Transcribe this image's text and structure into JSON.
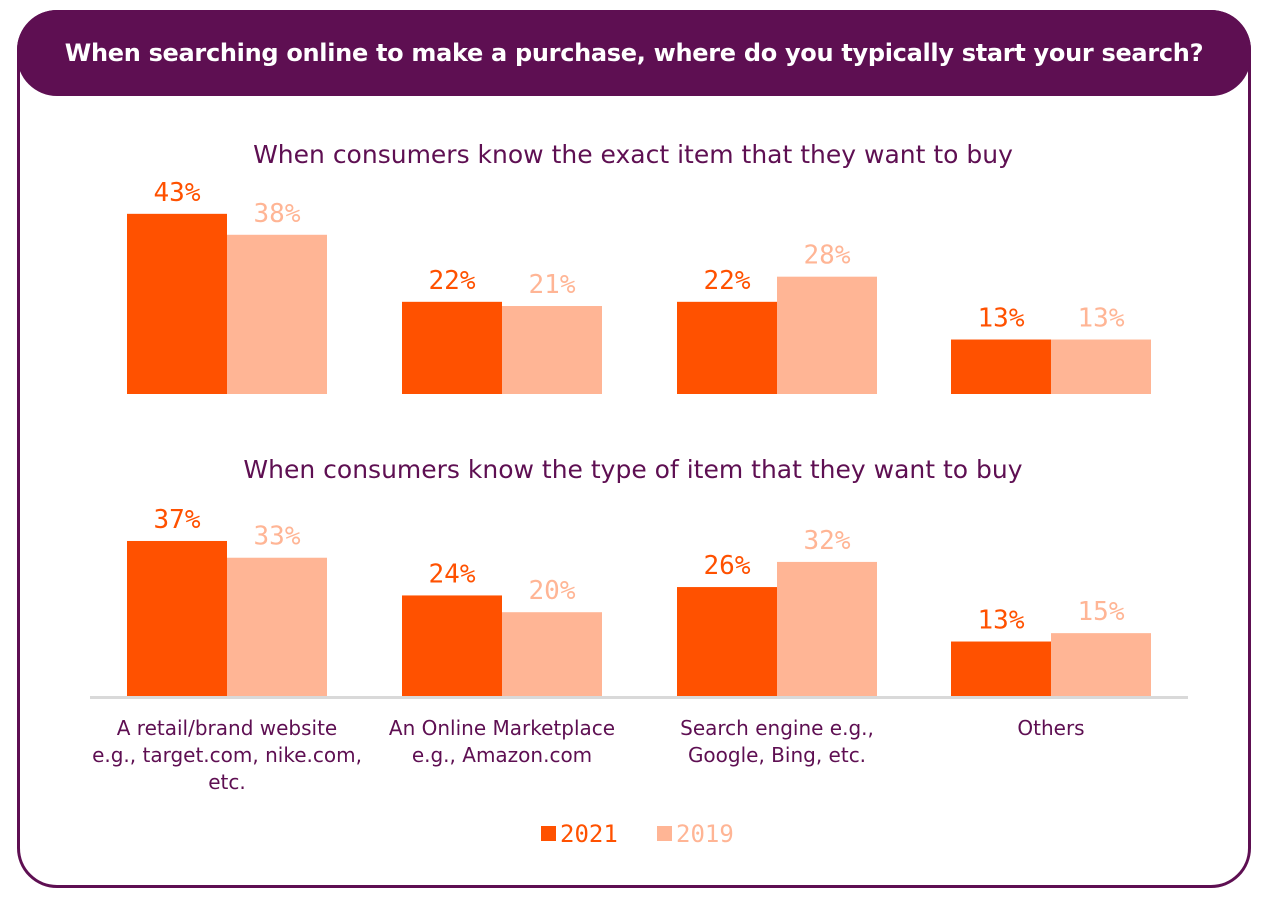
{
  "header": {
    "title": "When searching online to make a purchase, where do you typically start your search?"
  },
  "colors": {
    "brand": "#5e0f52",
    "series_2021": "#ff5100",
    "series_2019": "#ffb595",
    "axis": "#d9d9d9"
  },
  "chart_data": [
    {
      "type": "bar",
      "title": "When consumers know the exact item that they want to buy",
      "categories": [
        "A retail/brand website e.g., target.com, nike.com, etc.",
        "An Online Marketplace e.g., Amazon.com",
        "Search engine e.g., Google, Bing, etc.",
        "Others"
      ],
      "series": [
        {
          "name": "2021",
          "values": [
            43,
            22,
            22,
            13
          ],
          "labels": [
            "43%",
            "22%",
            "22%",
            "13%"
          ]
        },
        {
          "name": "2019",
          "values": [
            38,
            21,
            28,
            13
          ],
          "labels": [
            "38%",
            "21%",
            "28%",
            "13%"
          ]
        }
      ],
      "ylim": [
        0,
        45
      ]
    },
    {
      "type": "bar",
      "title": "When consumers know the type of item that they want to buy",
      "categories": [
        "A retail/brand website e.g., target.com, nike.com, etc.",
        "An Online Marketplace e.g., Amazon.com",
        "Search engine e.g., Google, Bing, etc.",
        "Others"
      ],
      "series": [
        {
          "name": "2021",
          "values": [
            37,
            24,
            26,
            13
          ],
          "labels": [
            "37%",
            "24%",
            "26%",
            "13%"
          ]
        },
        {
          "name": "2019",
          "values": [
            33,
            20,
            32,
            15
          ],
          "labels": [
            "33%",
            "20%",
            "32%",
            "15%"
          ]
        }
      ],
      "ylim": [
        0,
        45
      ]
    }
  ],
  "category_labels": [
    [
      "A retail/brand website",
      "e.g., target.com, nike.com,",
      "etc."
    ],
    [
      "An Online Marketplace",
      "e.g., Amazon.com"
    ],
    [
      "Search engine e.g.,",
      "Google, Bing, etc."
    ],
    [
      "Others"
    ]
  ],
  "legend": [
    {
      "label": "2021"
    },
    {
      "label": "2019"
    }
  ]
}
